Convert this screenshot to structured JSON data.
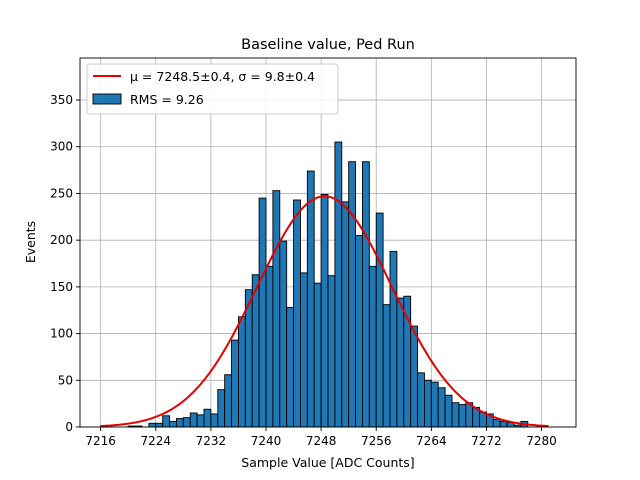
{
  "chart_data": {
    "type": "bar",
    "title": "Baseline value, Ped Run",
    "xlabel": "Sample Value [ADC Counts]",
    "ylabel": "Events",
    "xlim": [
      7213,
      7285
    ],
    "ylim": [
      0,
      395
    ],
    "xticks": [
      7216,
      7224,
      7232,
      7240,
      7248,
      7256,
      7264,
      7272,
      7280
    ],
    "yticks": [
      0,
      50,
      100,
      150,
      200,
      250,
      300,
      350
    ],
    "grid": true,
    "legend_position": "top-left",
    "legend": [
      {
        "kind": "line",
        "label": "μ = 7248.5±0.4, σ = 9.8±0.4",
        "color": "#e60000"
      },
      {
        "kind": "patch",
        "label": "RMS = 9.26",
        "color": "#1f77b4"
      }
    ],
    "series": [
      {
        "name": "RMS = 9.26",
        "kind": "histogram",
        "color": "#1f77b4",
        "bin_width": 1,
        "x": [
          7216,
          7217,
          7218,
          7219,
          7220,
          7221,
          7222,
          7223,
          7224,
          7225,
          7226,
          7227,
          7228,
          7229,
          7230,
          7231,
          7232,
          7233,
          7234,
          7235,
          7236,
          7237,
          7238,
          7239,
          7240,
          7241,
          7242,
          7243,
          7244,
          7245,
          7246,
          7247,
          7248,
          7249,
          7250,
          7251,
          7252,
          7253,
          7254,
          7255,
          7256,
          7257,
          7258,
          7259,
          7260,
          7261,
          7262,
          7263,
          7264,
          7265,
          7266,
          7267,
          7268,
          7269,
          7270,
          7271,
          7272,
          7273,
          7274,
          7275,
          7276,
          7277,
          7278,
          7279,
          7280
        ],
        "values": [
          1,
          0,
          0,
          0,
          1,
          1,
          0,
          4,
          4,
          12,
          6,
          9,
          10,
          15,
          13,
          19,
          14,
          40,
          56,
          93,
          118,
          147,
          163,
          245,
          172,
          253,
          199,
          128,
          243,
          165,
          274,
          154,
          249,
          162,
          305,
          241,
          284,
          205,
          284,
          172,
          229,
          131,
          188,
          138,
          140,
          108,
          58,
          50,
          48,
          42,
          34,
          26,
          24,
          26,
          21,
          16,
          14,
          8,
          6,
          5,
          2,
          6,
          0,
          0,
          0
        ]
      },
      {
        "name": "μ = 7248.5±0.4, σ = 9.8±0.4",
        "kind": "gaussian-fit",
        "color": "#e60000",
        "mu": 7248.5,
        "sigma": 9.8,
        "amplitude": 247,
        "x_range": [
          7216,
          7281
        ]
      }
    ]
  }
}
